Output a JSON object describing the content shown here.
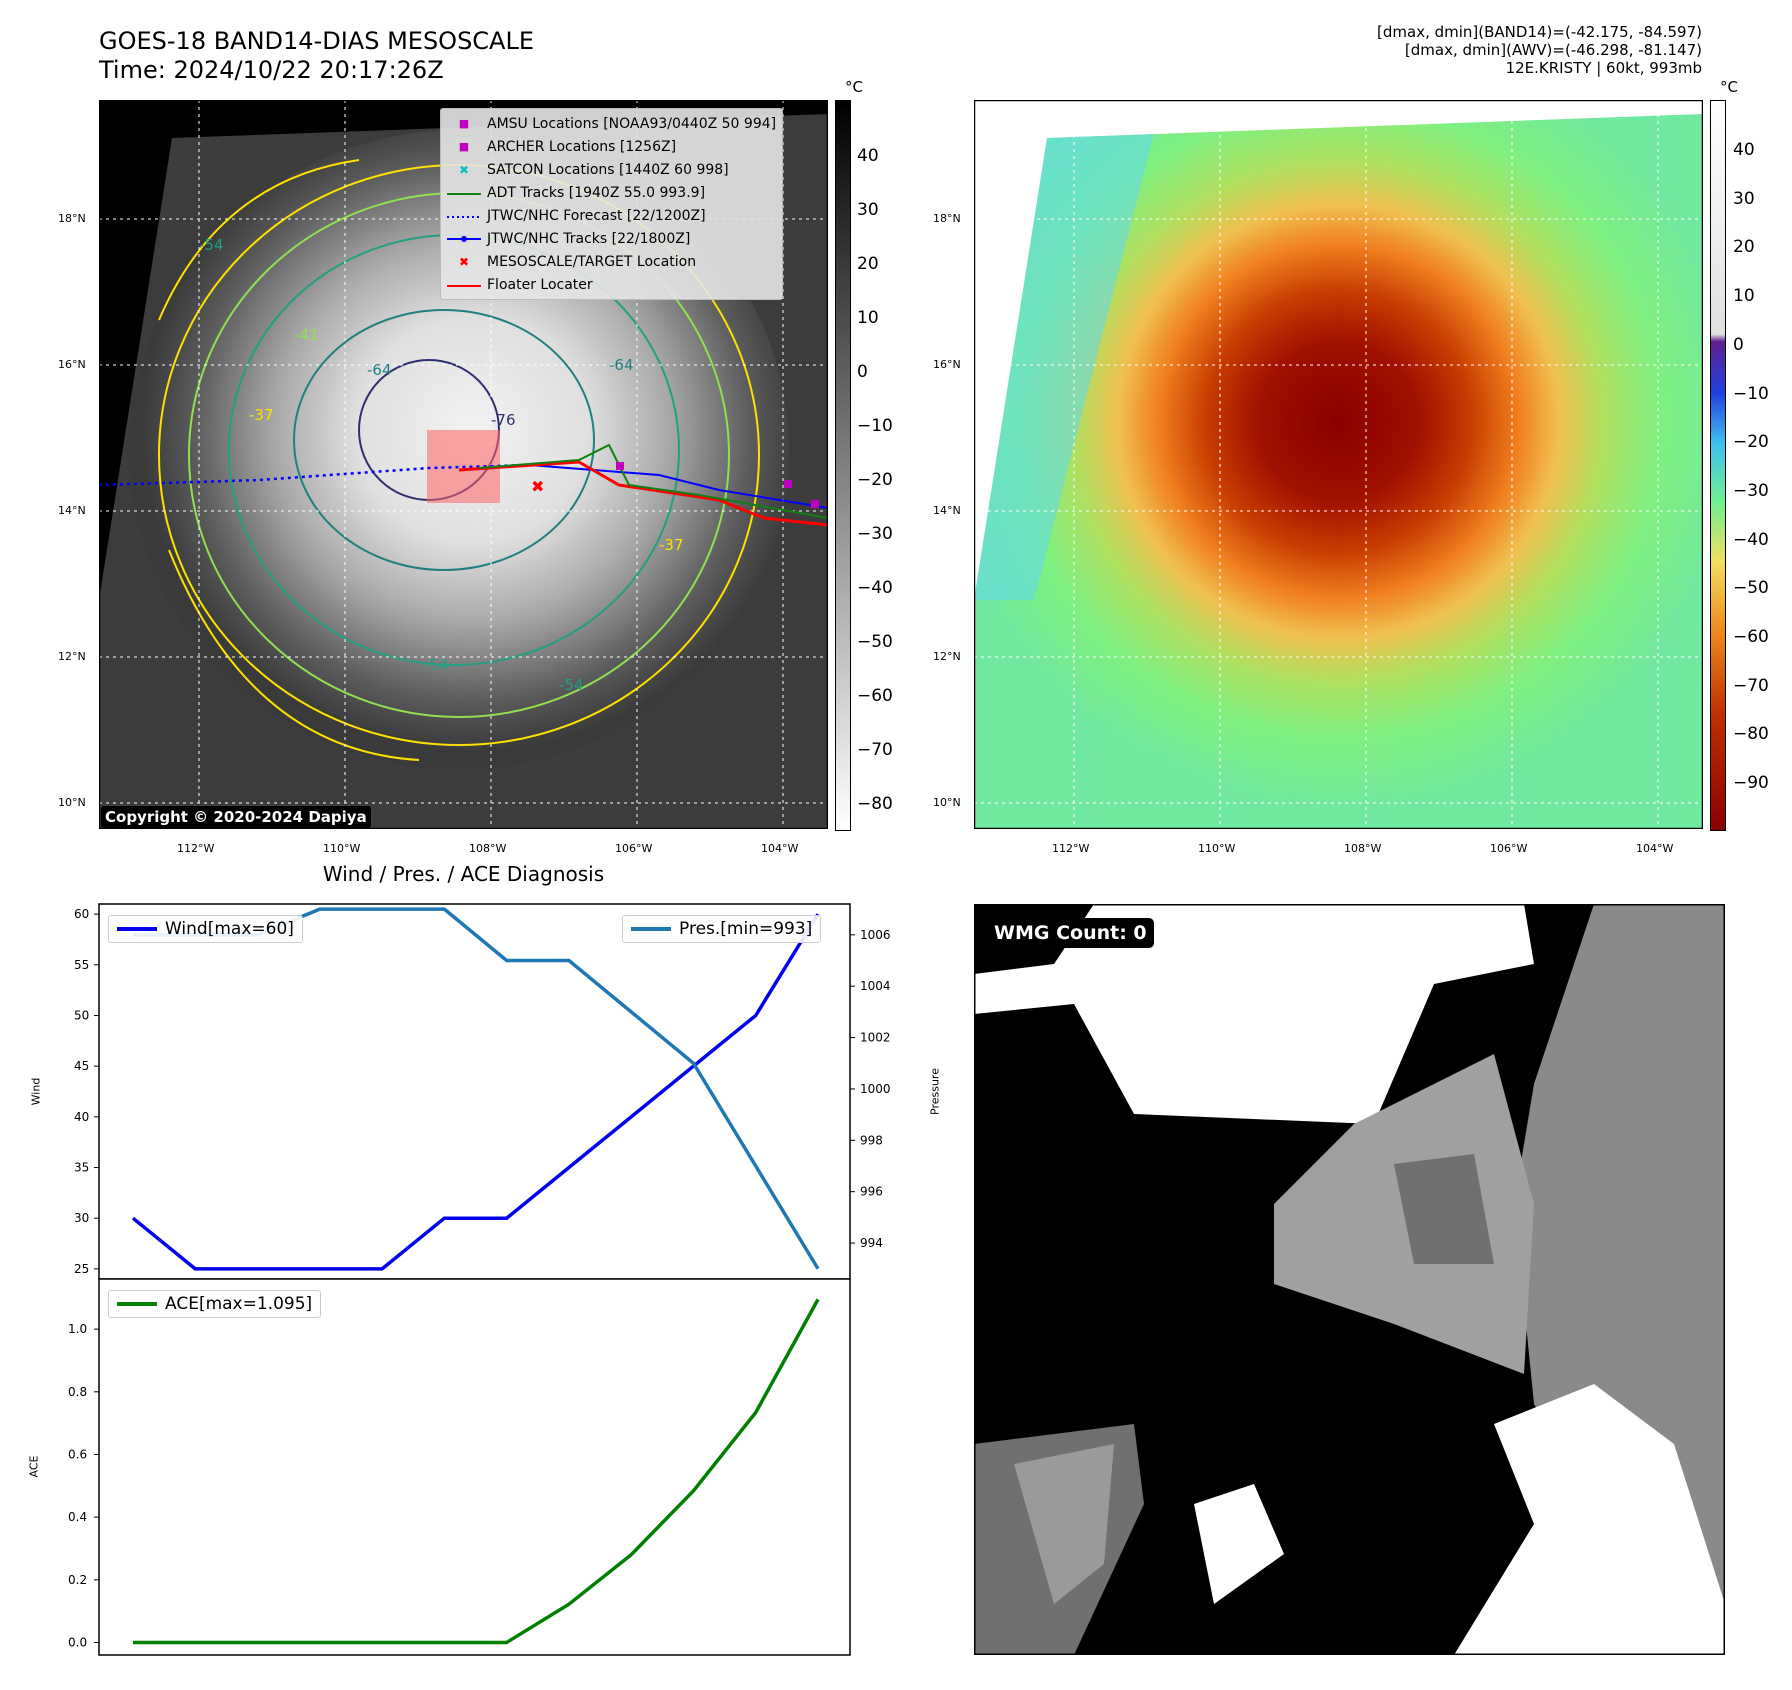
{
  "header": {
    "title_line1": "GOES-18 BAND14-DIAS MESOSCALE",
    "title_line2": "Time: 2024/10/22 20:17:26Z",
    "info_line1": "[dmax, dmin](BAND14)=(-42.175, -84.597)",
    "info_line2": "[dmax, dmin](AWV)=(-46.298, -81.147)",
    "info_line3": "12E.KRISTY | 60kt, 993mb"
  },
  "map": {
    "lat_labels": [
      "18°N",
      "16°N",
      "14°N",
      "12°N",
      "10°N"
    ],
    "lon_labels": [
      "112°W",
      "110°W",
      "108°W",
      "106°W",
      "104°W"
    ],
    "copyright": "Copyright © 2020-2024 Dapiya",
    "contour_labels": [
      "-64",
      "-64",
      "-76",
      "-54",
      "-54",
      "-54",
      "-37",
      "-37",
      "-41"
    ],
    "legend": [
      {
        "symbol": "■",
        "color": "#c000c0",
        "label": "AMSU Locations [NOAA93/0440Z 50 994]"
      },
      {
        "symbol": "■",
        "color": "#c000c0",
        "label": "ARCHER Locations [1256Z]"
      },
      {
        "symbol": "✖",
        "color": "#10c0c0",
        "label": "SATCON Locations [1440Z 60 998]"
      },
      {
        "symbol": "line",
        "color": "#108010",
        "label": "ADT Tracks [1940Z 55.0 993.9]"
      },
      {
        "symbol": "dotted",
        "color": "#0000ff",
        "label": "JTWC/NHC Forecast [22/1200Z]"
      },
      {
        "symbol": "dotline",
        "color": "#0000ff",
        "label": "JTWC/NHC Tracks [22/1800Z]"
      },
      {
        "symbol": "✖",
        "color": "#ff0000",
        "label": "MESOSCALE/TARGET Location"
      },
      {
        "symbol": "line",
        "color": "#ff0000",
        "label": "Floater Locater"
      }
    ]
  },
  "colorbar_gray": {
    "unit": "°C",
    "ticks": [
      "40",
      "30",
      "20",
      "10",
      "0",
      "−10",
      "−20",
      "−30",
      "−40",
      "−50",
      "−60",
      "−70",
      "−80"
    ]
  },
  "colorbar_color": {
    "unit": "°C",
    "ticks": [
      "40",
      "30",
      "20",
      "10",
      "0",
      "−10",
      "−20",
      "−30",
      "−40",
      "−50",
      "−60",
      "−70",
      "−80",
      "−90"
    ]
  },
  "wmg": {
    "label": "WMG Count: 0"
  },
  "diag_title": "Wind / Pres. / ACE Diagnosis",
  "chart_data": [
    {
      "type": "line",
      "title": "Wind / Pres. / ACE Diagnosis",
      "ylabel": "Wind",
      "y2label": "Pressure",
      "ylim": [
        24,
        61
      ],
      "y2lim": [
        992.6,
        1007.2
      ],
      "yticks": [
        "60",
        "55",
        "50",
        "45",
        "40",
        "35",
        "30",
        "25"
      ],
      "y2ticks": [
        "1006",
        "1004",
        "1002",
        "1000",
        "998",
        "996",
        "994"
      ],
      "series": [
        {
          "name": "Wind[max=60]",
          "color": "#0000ee",
          "axis": "left",
          "values": [
            30,
            25,
            25,
            25,
            25,
            30,
            30,
            35,
            40,
            45,
            50,
            60
          ]
        },
        {
          "name": "Pres.[min=993]",
          "color": "#1f77b4",
          "axis": "right",
          "values": [
            1006,
            1006,
            1006,
            1007,
            1007,
            1007,
            1005,
            1005,
            1003,
            1001,
            997,
            993
          ]
        }
      ]
    },
    {
      "type": "line",
      "ylabel": "ACE",
      "ylim": [
        -0.04,
        1.16
      ],
      "yticks": [
        "1.0",
        "0.8",
        "0.6",
        "0.4",
        "0.2",
        "0.0"
      ],
      "series": [
        {
          "name": "ACE[max=1.095]",
          "color": "#008000",
          "axis": "left",
          "values": [
            0.0,
            0.0,
            0.0,
            0.0,
            0.0,
            0.0,
            0.0,
            0.122,
            0.28,
            0.484,
            0.734,
            1.095
          ]
        }
      ]
    }
  ]
}
